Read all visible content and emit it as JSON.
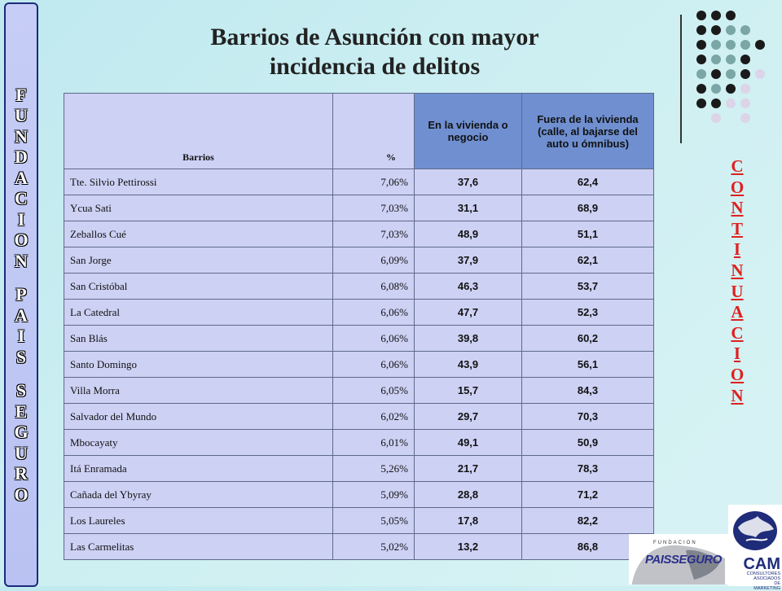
{
  "banner_left": {
    "lines": [
      "FUNDACION",
      "PAIS",
      "SEGURO"
    ]
  },
  "title": {
    "line1": "Barrios de Asunción con mayor",
    "line2": "incidencia  de delitos"
  },
  "right_word": "CONTINUACION",
  "table": {
    "headers": {
      "barrios": "Barrios",
      "pct": "%",
      "vivienda": "En la vivienda o negocio",
      "fuera": "Fuera de la vivienda (calle, al bajarse del auto u ómnibus)"
    },
    "rows": [
      {
        "barrio": "Tte. Silvio Pettirossi",
        "pct": "7,06%",
        "vivienda": "37,6",
        "fuera": "62,4"
      },
      {
        "barrio": "Ycua Sati",
        "pct": "7,03%",
        "vivienda": "31,1",
        "fuera": "68,9"
      },
      {
        "barrio": "Zeballos Cué",
        "pct": "7,03%",
        "vivienda": "48,9",
        "fuera": "51,1"
      },
      {
        "barrio": "San Jorge",
        "pct": "6,09%",
        "vivienda": "37,9",
        "fuera": "62,1"
      },
      {
        "barrio": "San Cristóbal",
        "pct": "6,08%",
        "vivienda": "46,3",
        "fuera": "53,7"
      },
      {
        "barrio": "La Catedral",
        "pct": "6,06%",
        "vivienda": "47,7",
        "fuera": "52,3"
      },
      {
        "barrio": "San Blás",
        "pct": "6,06%",
        "vivienda": "39,8",
        "fuera": "60,2"
      },
      {
        "barrio": "Santo Domingo",
        "pct": "6,06%",
        "vivienda": "43,9",
        "fuera": "56,1"
      },
      {
        "barrio": "Villa Morra",
        "pct": "6,05%",
        "vivienda": "15,7",
        "fuera": "84,3"
      },
      {
        "barrio": "Salvador del Mundo",
        "pct": "6,02%",
        "vivienda": "29,7",
        "fuera": "70,3"
      },
      {
        "barrio": "Mbocayaty",
        "pct": "6,01%",
        "vivienda": "49,1",
        "fuera": "50,9"
      },
      {
        "barrio": "Itá Enramada",
        "pct": "5,26%",
        "vivienda": "21,7",
        "fuera": "78,3"
      },
      {
        "barrio": "Cañada del Ybyray",
        "pct": "5,09%",
        "vivienda": "28,8",
        "fuera": "71,2"
      },
      {
        "barrio": "Los Laureles",
        "pct": "5,05%",
        "vivienda": "17,8",
        "fuera": "82,2"
      },
      {
        "barrio": "Las Carmelitas",
        "pct": "5,02%",
        "vivienda": "13,2",
        "fuera": "86,8"
      }
    ]
  },
  "logos": {
    "paisseguro_small": "FUNDACION",
    "paisseguro_big": "PAISSEGURO",
    "cam_name": "CAM",
    "cam_sub": [
      "CONSULTORES",
      "ASOCIADOS",
      "DE",
      "MARKETING"
    ]
  },
  "colors": {
    "red_value": "#e8201c",
    "header_blue": "#6f8fd0",
    "dot_black": "#1a1a1a",
    "dot_teal": "#7aa6a6",
    "dot_pink": "#dcd4e8"
  }
}
